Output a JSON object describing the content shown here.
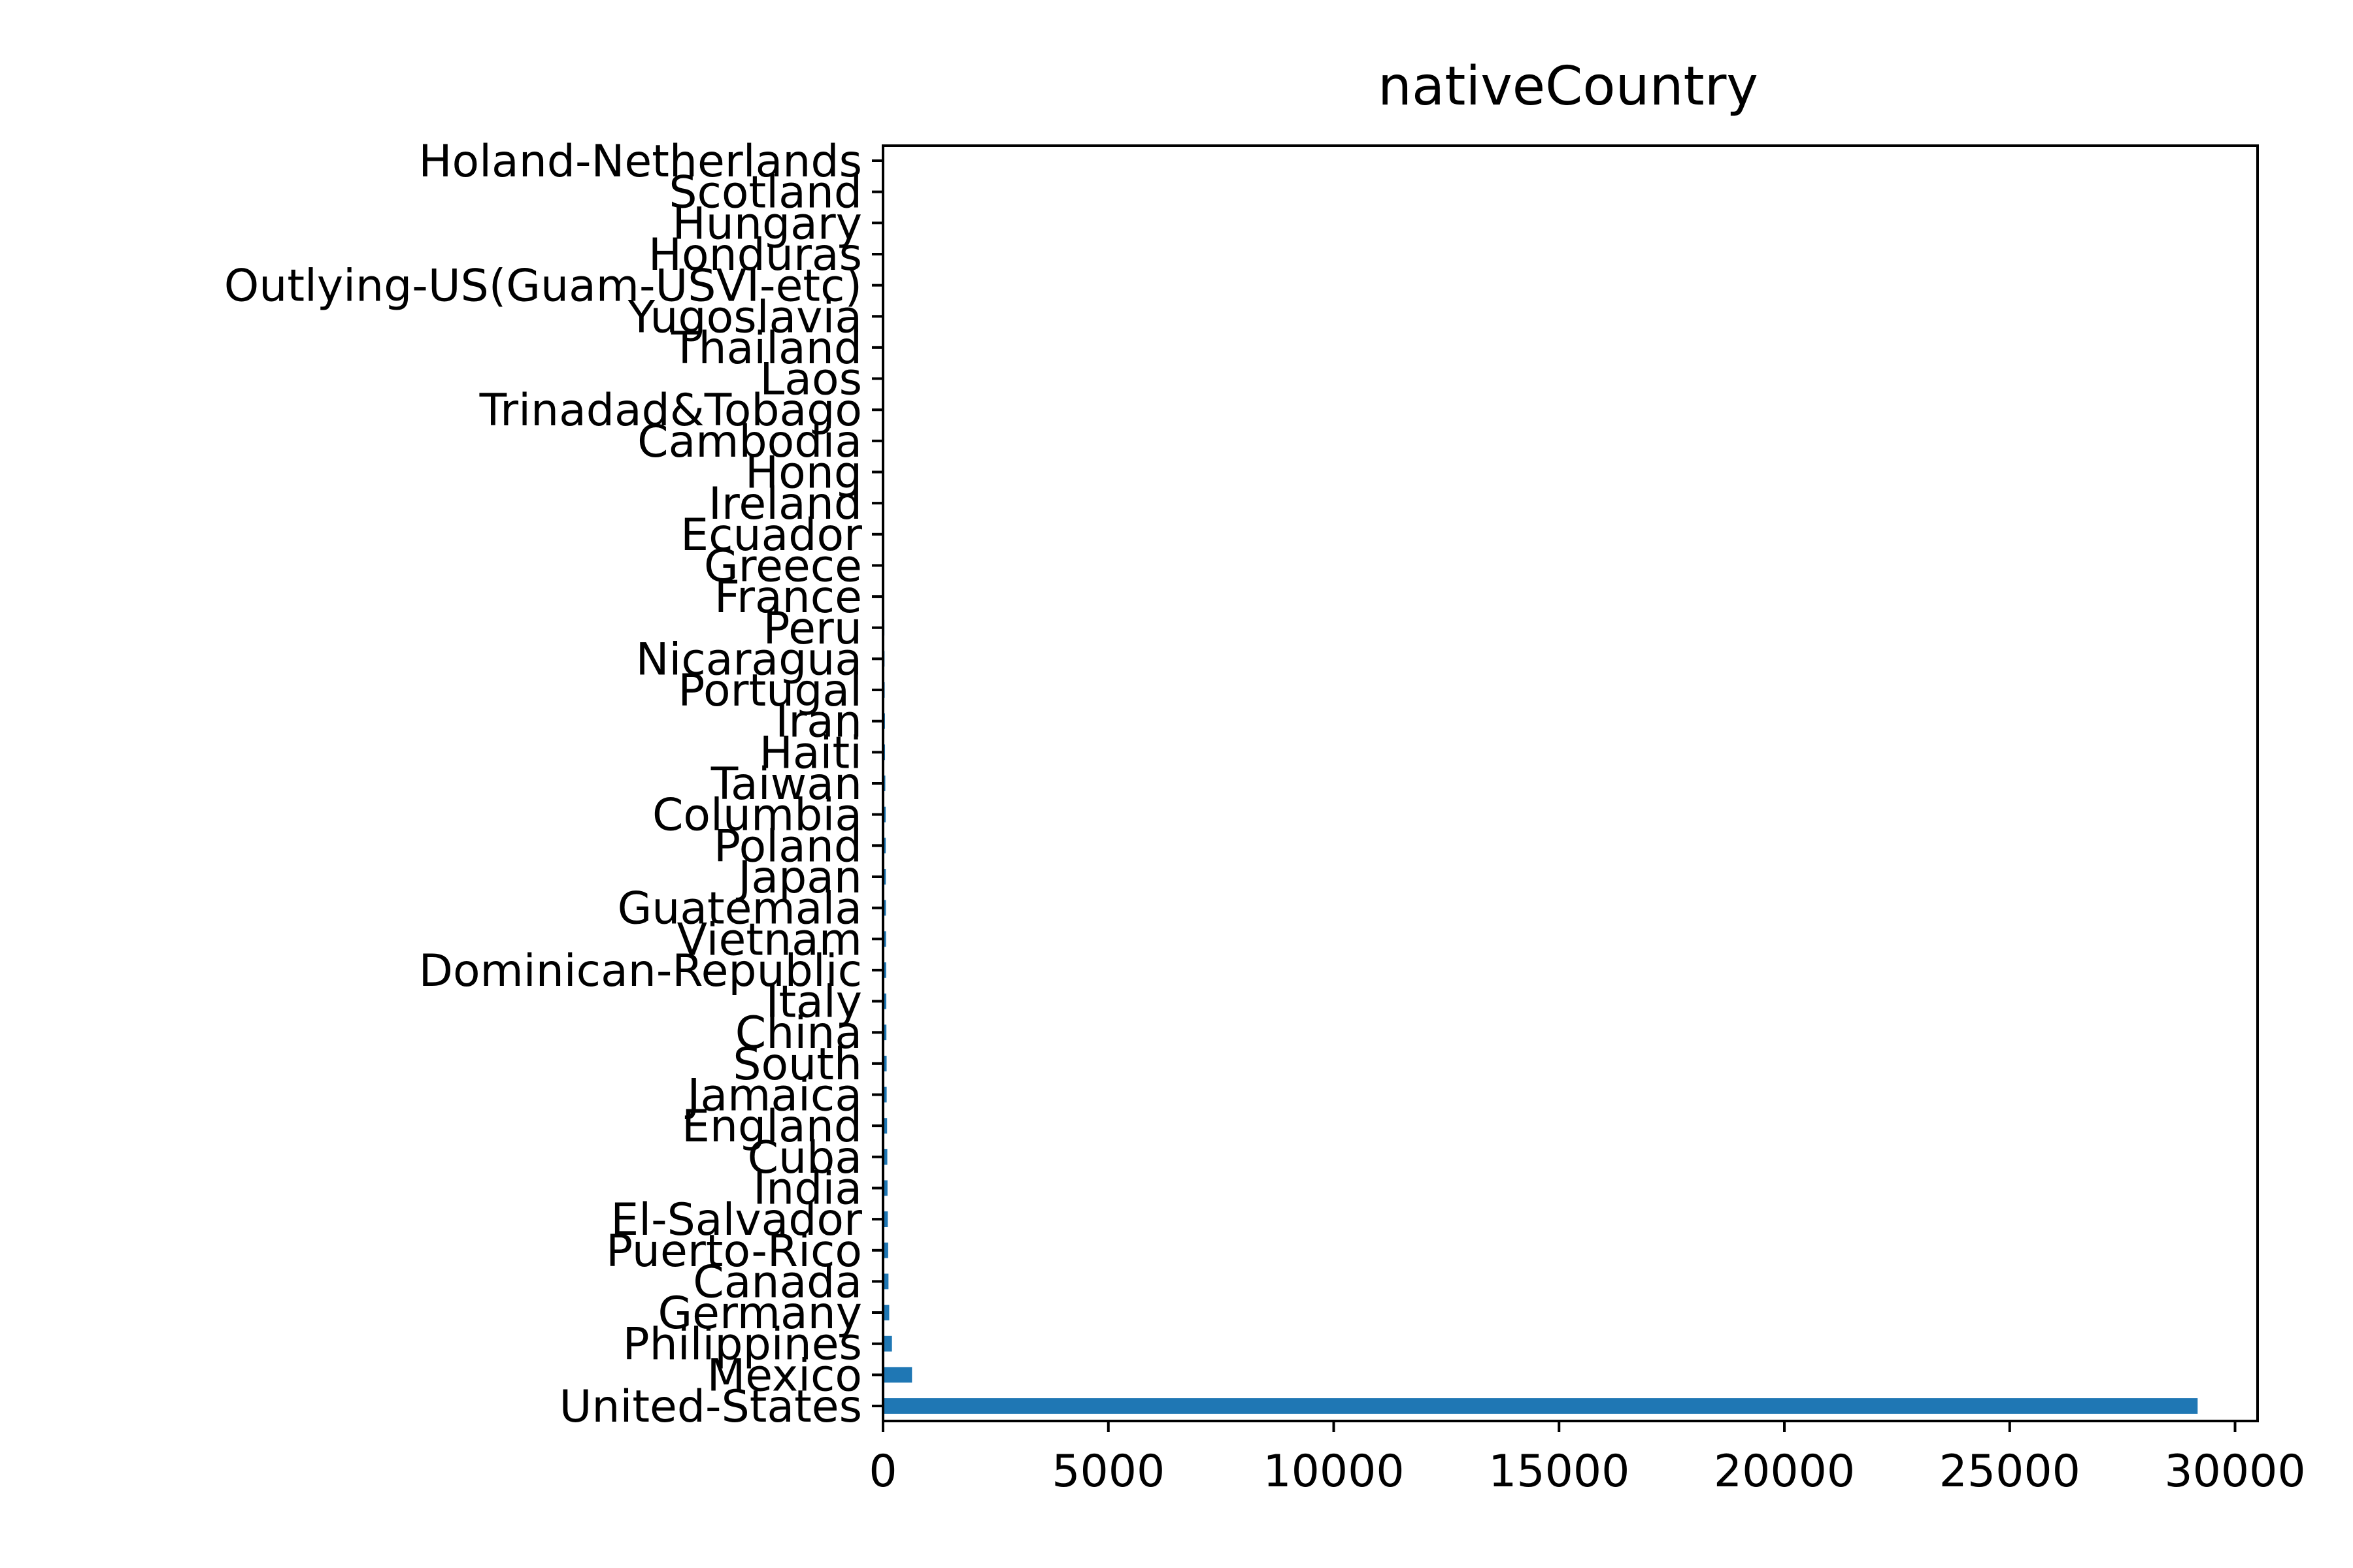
{
  "chart_data": {
    "type": "bar",
    "orientation": "horizontal",
    "title": "nativeCountry",
    "xlabel": "",
    "ylabel": "",
    "xlim": [
      0,
      30500
    ],
    "x_ticks": [
      0,
      5000,
      10000,
      15000,
      20000,
      25000,
      30000
    ],
    "grid": false,
    "legend": "none",
    "bar_color": "#1f77b4",
    "categories": [
      "United-States",
      "Mexico",
      "Philippines",
      "Germany",
      "Canada",
      "Puerto-Rico",
      "El-Salvador",
      "India",
      "Cuba",
      "England",
      "Jamaica",
      "South",
      "China",
      "Italy",
      "Dominican-Republic",
      "Vietnam",
      "Guatemala",
      "Japan",
      "Poland",
      "Columbia",
      "Taiwan",
      "Haiti",
      "Iran",
      "Portugal",
      "Nicaragua",
      "Peru",
      "France",
      "Greece",
      "Ecuador",
      "Ireland",
      "Hong",
      "Cambodia",
      "Trinadad&Tobago",
      "Laos",
      "Thailand",
      "Yugoslavia",
      "Outlying-US(Guam-USVI-etc)",
      "Honduras",
      "Hungary",
      "Scotland",
      "Holand-Netherlands"
    ],
    "values": [
      29170,
      643,
      198,
      137,
      121,
      114,
      106,
      100,
      95,
      90,
      81,
      80,
      75,
      73,
      70,
      67,
      64,
      62,
      60,
      59,
      51,
      44,
      43,
      37,
      34,
      31,
      29,
      29,
      28,
      24,
      20,
      19,
      19,
      18,
      18,
      16,
      14,
      13,
      13,
      12,
      1
    ]
  }
}
